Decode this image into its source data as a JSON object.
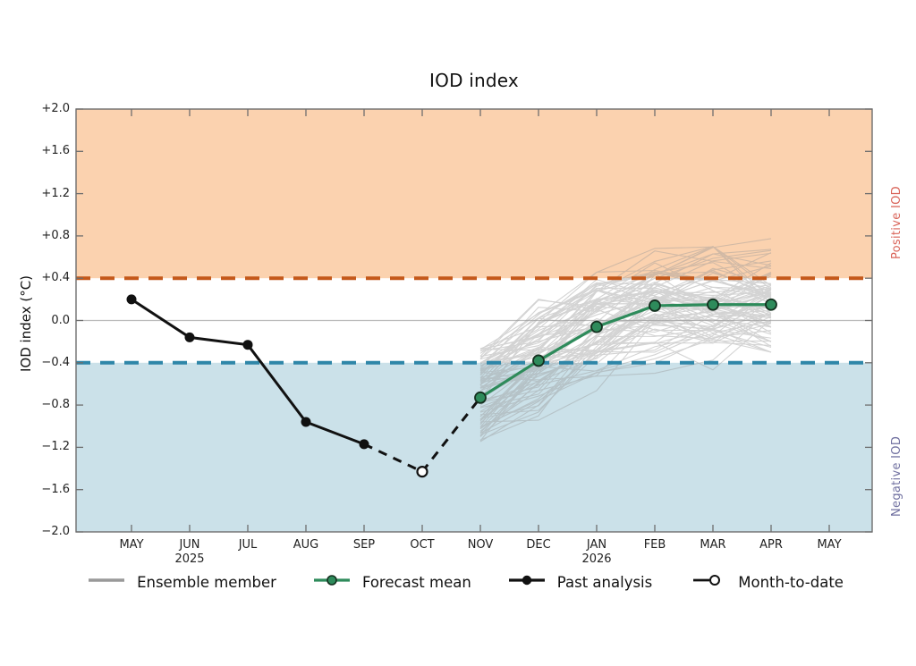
{
  "title": "IOD index",
  "ylabel": "IOD index (°C)",
  "right_labels": {
    "positive": "Positive IOD",
    "negative": "Negative IOD"
  },
  "legend": {
    "items": [
      {
        "label": "Ensemble member",
        "marker": "ensemble"
      },
      {
        "label": "Forecast mean",
        "marker": "forecast"
      },
      {
        "label": "Past analysis",
        "marker": "past"
      },
      {
        "label": "Month-to-date",
        "marker": "mtd"
      }
    ]
  },
  "colors": {
    "positive_band": "#FBD2AF",
    "negative_band": "#CBE1E9",
    "positive_threshold_line": "#C4581A",
    "negative_threshold_line": "#2E86A8",
    "forecast_mean_line": "#2E8B5B",
    "forecast_dot_edge": "#14301f",
    "past_analysis_line": "#111111",
    "ensemble_line": "#999999",
    "positive_label_text": "#D96459",
    "negative_label_text": "#7070A0",
    "zero_line": "#BBBBBB",
    "axis": "#6E6E6E"
  },
  "chart_data": {
    "type": "line",
    "title": "IOD index",
    "xlabel": "",
    "ylabel": "IOD index (°C)",
    "ylim": [
      -2.0,
      2.0
    ],
    "grid": false,
    "legend_position": "bottom",
    "yticks": [
      {
        "value": 2.0,
        "label": "+2.0"
      },
      {
        "value": 1.6,
        "label": "+1.6"
      },
      {
        "value": 1.2,
        "label": "+1.2"
      },
      {
        "value": 0.8,
        "label": "+0.8"
      },
      {
        "value": 0.4,
        "label": "+0.4"
      },
      {
        "value": 0.0,
        "label": "0.0"
      },
      {
        "value": -0.4,
        "label": "−0.4"
      },
      {
        "value": -0.8,
        "label": "−0.8"
      },
      {
        "value": -1.2,
        "label": "−1.2"
      },
      {
        "value": -1.6,
        "label": "−1.6"
      },
      {
        "value": -2.0,
        "label": "−2.0"
      }
    ],
    "xticks": [
      {
        "label": "MAY"
      },
      {
        "label": "JUN",
        "year": "2025"
      },
      {
        "label": "JUL"
      },
      {
        "label": "AUG"
      },
      {
        "label": "SEP"
      },
      {
        "label": "OCT"
      },
      {
        "label": "NOV"
      },
      {
        "label": "DEC"
      },
      {
        "label": "JAN",
        "year": "2026"
      },
      {
        "label": "FEB"
      },
      {
        "label": "MAR"
      },
      {
        "label": "APR"
      },
      {
        "label": "MAY"
      }
    ],
    "thresholds": {
      "positive_iod": 0.4,
      "negative_iod": -0.4
    },
    "zero_line": 0.0,
    "series": [
      {
        "name": "Past analysis",
        "style": "solid-black-filled-dots",
        "month_indices": [
          0,
          1,
          2,
          3,
          4
        ],
        "values": [
          0.2,
          -0.16,
          -0.23,
          -0.96,
          -1.17
        ]
      },
      {
        "name": "Month-to-date",
        "style": "dashed-black-open-dot",
        "month_indices": [
          5
        ],
        "values": [
          -1.43
        ]
      },
      {
        "name": "Forecast mean",
        "style": "solid-green-filled-dots",
        "month_indices": [
          6,
          7,
          8,
          9,
          10,
          11
        ],
        "values": [
          -0.73,
          -0.38,
          -0.06,
          0.14,
          0.15,
          0.15
        ]
      }
    ],
    "ensemble": {
      "name": "Ensemble member",
      "member_count": 90,
      "month_indices": [
        6,
        7,
        8,
        9,
        10,
        11
      ],
      "mean": [
        -0.73,
        -0.38,
        -0.06,
        0.14,
        0.15,
        0.15
      ],
      "envelope_min": [
        -1.15,
        -0.95,
        -0.7,
        -0.6,
        -0.5,
        -0.3
      ],
      "envelope_max": [
        -0.25,
        0.3,
        0.6,
        0.7,
        0.7,
        0.85
      ]
    }
  }
}
